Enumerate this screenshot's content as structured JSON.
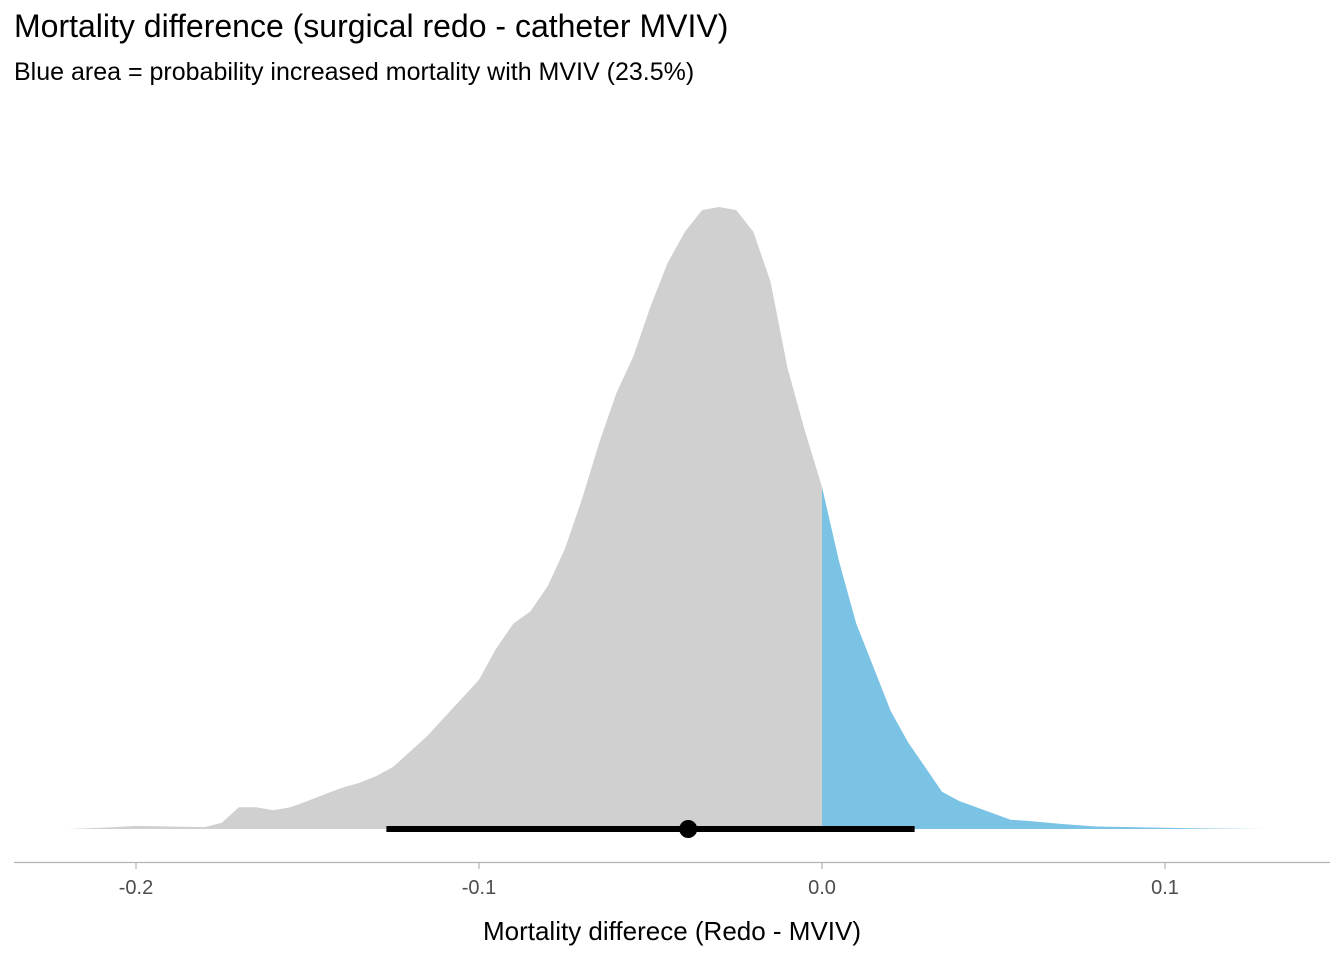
{
  "header": {
    "title": "Mortality difference (surgical redo - catheter MVIV)",
    "subtitle": "Blue area = probability increased mortality with MVIV (23.5%)"
  },
  "chart_data": {
    "type": "area",
    "title": "Mortality difference (surgical redo - catheter MVIV)",
    "subtitle": "Blue area = probability increased mortality with MVIV (23.5%)",
    "xlabel": "Mortality differece (Redo - MVIV)",
    "ylabel": "",
    "xlim": [
      -0.235,
      0.149
    ],
    "ylim": [
      0,
      1.0
    ],
    "x_ticks": [
      -0.2,
      -0.1,
      0.0,
      0.1
    ],
    "x_tick_labels": [
      "-0.2",
      "-0.1",
      "0.0",
      "0.1"
    ],
    "grid": false,
    "legend": "none",
    "density": {
      "x": [
        -0.22,
        -0.21,
        -0.2,
        -0.19,
        -0.18,
        -0.175,
        -0.17,
        -0.165,
        -0.16,
        -0.155,
        -0.15,
        -0.145,
        -0.14,
        -0.135,
        -0.13,
        -0.125,
        -0.12,
        -0.115,
        -0.11,
        -0.105,
        -0.1,
        -0.095,
        -0.09,
        -0.085,
        -0.08,
        -0.075,
        -0.07,
        -0.065,
        -0.06,
        -0.055,
        -0.05,
        -0.045,
        -0.04,
        -0.035,
        -0.03,
        -0.025,
        -0.02,
        -0.015,
        -0.01,
        -0.005,
        0.0,
        0.005,
        0.01,
        0.015,
        0.02,
        0.025,
        0.03,
        0.035,
        0.04,
        0.045,
        0.05,
        0.055,
        0.06,
        0.07,
        0.08,
        0.09,
        0.1,
        0.11,
        0.12,
        0.13
      ],
      "y": [
        0.0,
        0.002,
        0.005,
        0.004,
        0.003,
        0.01,
        0.035,
        0.035,
        0.03,
        0.035,
        0.045,
        0.056,
        0.066,
        0.074,
        0.085,
        0.1,
        0.125,
        0.15,
        0.18,
        0.21,
        0.24,
        0.29,
        0.33,
        0.35,
        0.39,
        0.45,
        0.53,
        0.62,
        0.7,
        0.76,
        0.84,
        0.91,
        0.96,
        0.995,
        1.0,
        0.995,
        0.96,
        0.88,
        0.74,
        0.64,
        0.55,
        0.43,
        0.33,
        0.26,
        0.19,
        0.14,
        0.1,
        0.06,
        0.045,
        0.035,
        0.025,
        0.015,
        0.013,
        0.008,
        0.004,
        0.003,
        0.002,
        0.001,
        0.0005,
        0.0
      ]
    },
    "shade_threshold": 0.0,
    "probability_above_threshold": "23.5%",
    "interval": {
      "point": -0.039,
      "lower": -0.127,
      "upper": 0.027
    },
    "colors": {
      "below_threshold": "#d0d0d0",
      "above_threshold": "#7bc3e5",
      "interval": "#000000",
      "axis_line": "#b3b3b3",
      "tick_text": "#4d4d4d"
    }
  }
}
